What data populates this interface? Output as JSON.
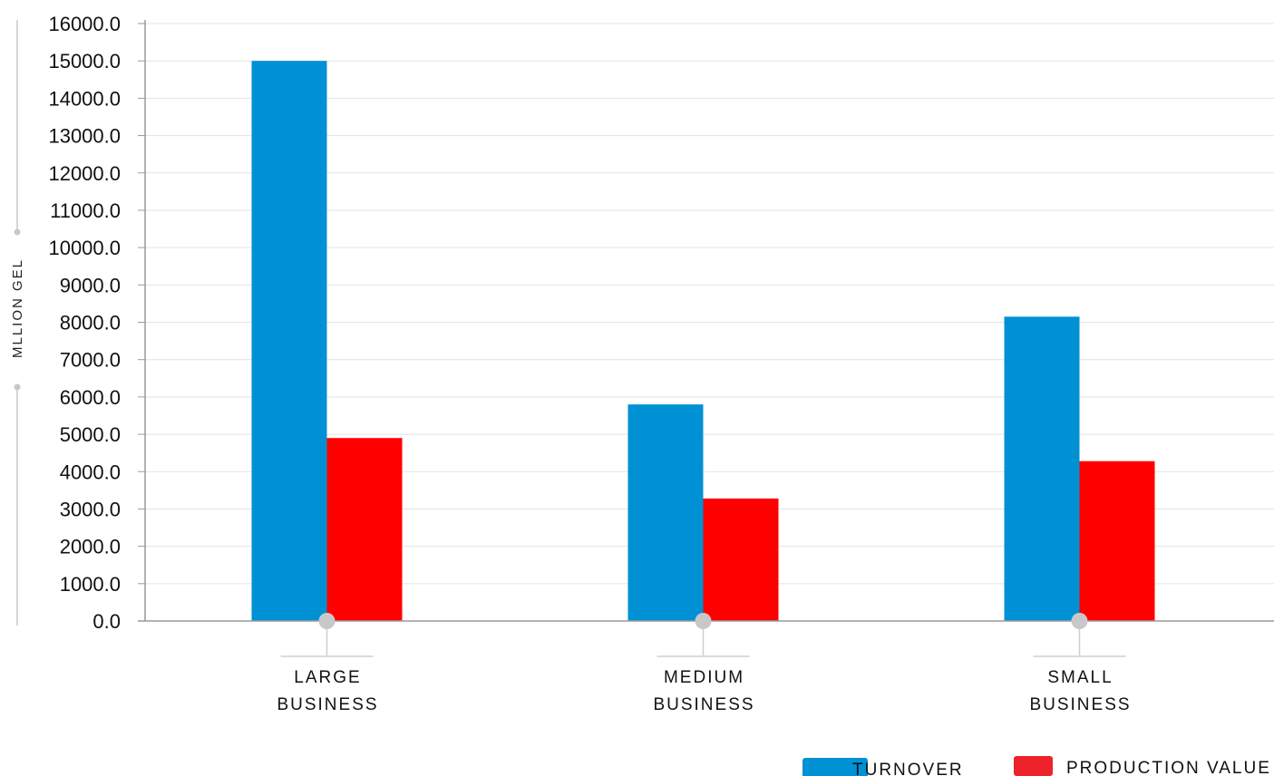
{
  "chart_data": {
    "type": "bar",
    "categories": [
      "LARGE BUSINESS",
      "MEDIUM BUSINESS",
      "SMALL BUSINESS"
    ],
    "category_lines": [
      [
        "LARGE",
        "BUSINESS"
      ],
      [
        "MEDIUM",
        "BUSINESS"
      ],
      [
        "SMALL",
        "BUSINESS"
      ]
    ],
    "series": [
      {
        "name": "TURNOVER",
        "color": "#0091d5",
        "values": [
          15000.0,
          5800.0,
          8150.0
        ]
      },
      {
        "name": "PRODUCTION VALUE",
        "color": "#ff0000",
        "values": [
          4900.0,
          3280.0,
          4280.0
        ]
      }
    ],
    "ylabel": "MLLION GEL",
    "xlabel": "",
    "title": "",
    "ylim": [
      0,
      16000
    ],
    "ytick_step": 1000,
    "ytick_decimals": 1,
    "grid": true,
    "legend_position": "bottom-right"
  }
}
